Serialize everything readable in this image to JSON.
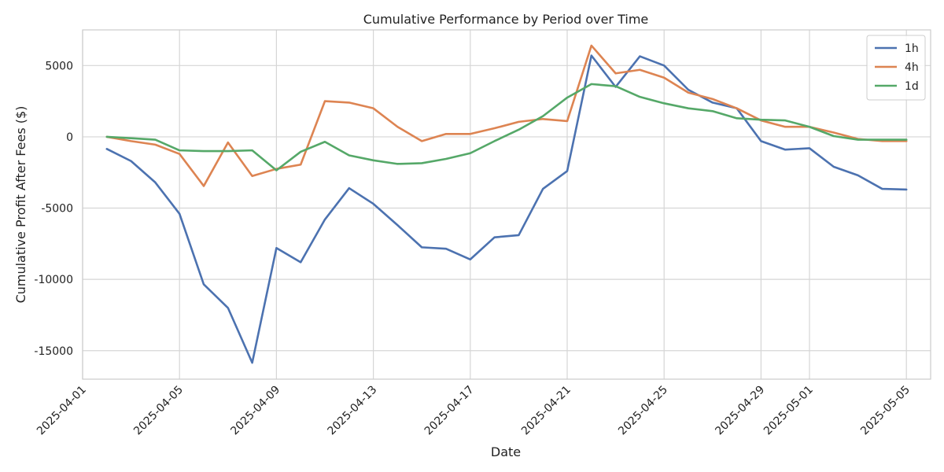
{
  "chart_data": {
    "type": "line",
    "title": "Cumulative Performance by Period over Time",
    "xlabel": "Date",
    "ylabel": "Cumulative Profit After Fees ($)",
    "x": [
      "2025-04-02",
      "2025-04-03",
      "2025-04-04",
      "2025-04-05",
      "2025-04-06",
      "2025-04-07",
      "2025-04-08",
      "2025-04-09",
      "2025-04-10",
      "2025-04-11",
      "2025-04-12",
      "2025-04-13",
      "2025-04-14",
      "2025-04-15",
      "2025-04-16",
      "2025-04-17",
      "2025-04-18",
      "2025-04-19",
      "2025-04-20",
      "2025-04-21",
      "2025-04-22",
      "2025-04-23",
      "2025-04-24",
      "2025-04-25",
      "2025-04-26",
      "2025-04-27",
      "2025-04-28",
      "2025-04-29",
      "2025-04-30",
      "2025-05-01",
      "2025-05-02",
      "2025-05-03",
      "2025-05-04",
      "2025-05-05"
    ],
    "series": [
      {
        "name": "1h",
        "color": "#4c72b0",
        "values": [
          -850,
          -1700,
          -3200,
          -5400,
          -10350,
          -12000,
          -15850,
          -7800,
          -8800,
          -5800,
          -3600,
          -4700,
          -6200,
          -7750,
          -7850,
          -8600,
          -7050,
          -6900,
          -3650,
          -2400,
          5700,
          3500,
          5650,
          5000,
          3300,
          2400,
          2000,
          -300,
          -900,
          -800,
          -2100,
          -2700,
          -3650,
          -3700
        ]
      },
      {
        "name": "4h",
        "color": "#dd8452",
        "values": [
          0,
          -300,
          -550,
          -1200,
          -3450,
          -400,
          -2750,
          -2250,
          -1950,
          2500,
          2400,
          2000,
          700,
          -300,
          200,
          200,
          600,
          1050,
          1250,
          1100,
          6400,
          4450,
          4700,
          4150,
          3100,
          2650,
          2000,
          1150,
          700,
          700,
          300,
          -150,
          -300,
          -300
        ]
      },
      {
        "name": "1d",
        "color": "#55a868",
        "values": [
          0,
          -100,
          -200,
          -950,
          -1000,
          -1000,
          -950,
          -2350,
          -1050,
          -350,
          -1300,
          -1650,
          -1900,
          -1850,
          -1550,
          -1150,
          -300,
          500,
          1450,
          2750,
          3700,
          3550,
          2800,
          2350,
          2000,
          1800,
          1300,
          1200,
          1150,
          700,
          50,
          -200,
          -200,
          -200
        ]
      }
    ],
    "xlim": [
      "2025-04-01",
      "2025-05-06"
    ],
    "x_ticks": [
      "2025-04-01",
      "2025-04-05",
      "2025-04-09",
      "2025-04-13",
      "2025-04-17",
      "2025-04-21",
      "2025-04-25",
      "2025-04-29",
      "2025-05-01",
      "2025-05-05"
    ],
    "ylim": [
      -17000,
      7500
    ],
    "y_ticks": [
      5000,
      0,
      -5000,
      -10000,
      -15000
    ],
    "grid": true,
    "legend_position": "top-right"
  }
}
